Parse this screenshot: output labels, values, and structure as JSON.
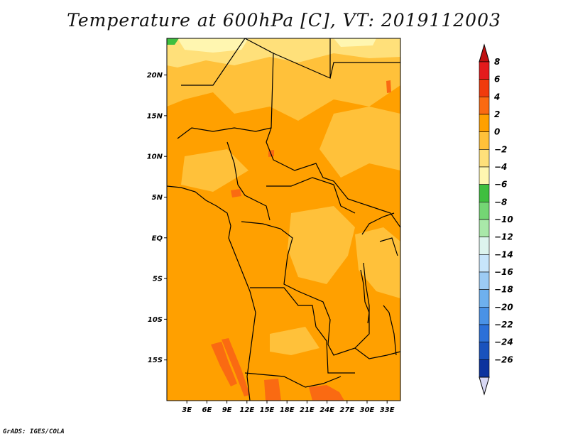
{
  "chart_data": {
    "type": "heatmap",
    "title": "Temperature at 600hPa [C], VT: 2019112003",
    "xlabel": "",
    "ylabel": "",
    "x_ticks": [
      "3E",
      "6E",
      "9E",
      "12E",
      "15E",
      "18E",
      "21E",
      "24E",
      "27E",
      "30E",
      "33E"
    ],
    "x_tick_values": [
      3,
      6,
      9,
      12,
      15,
      18,
      21,
      24,
      27,
      30,
      33
    ],
    "y_ticks": [
      "20N",
      "15N",
      "10N",
      "5N",
      "EQ",
      "5S",
      "10S",
      "15S"
    ],
    "y_tick_values": [
      20,
      15,
      10,
      5,
      0,
      -5,
      -10,
      -15
    ],
    "xlim": [
      0,
      35
    ],
    "ylim": [
      -20,
      24.5
    ],
    "units": "C",
    "dominant_range": [
      2,
      4
    ],
    "colorbar": {
      "levels": [
        8,
        6,
        4,
        2,
        0,
        -2,
        -4,
        -6,
        -8,
        -10,
        -12,
        -14,
        -16,
        -18,
        -20,
        -22,
        -24,
        -26
      ],
      "level_labels": [
        "8",
        "6",
        "4",
        "2",
        "0",
        "−2",
        "−4",
        "−6",
        "−8",
        "−10",
        "−12",
        "−14",
        "−16",
        "−18",
        "−20",
        "−22",
        "−24",
        "−26"
      ],
      "colors": [
        "#e41a1c",
        "#f03b0c",
        "#fa6a12",
        "#ffa000",
        "#ffc13a",
        "#ffe07a",
        "#fff6b0",
        "#3fbf3f",
        "#74d674",
        "#a9e8a9",
        "#ddf4ee",
        "#c7e5fb",
        "#9ccbf4",
        "#6eb0ee",
        "#4a92e6",
        "#2c70d8",
        "#1952bd",
        "#0c339e"
      ],
      "top_arrow_color": "#c01010",
      "bottom_arrow_color": "#d8d8f4",
      "tail_color": "#0a1a6e"
    }
  },
  "credit": "GrADS: IGES/COLA"
}
